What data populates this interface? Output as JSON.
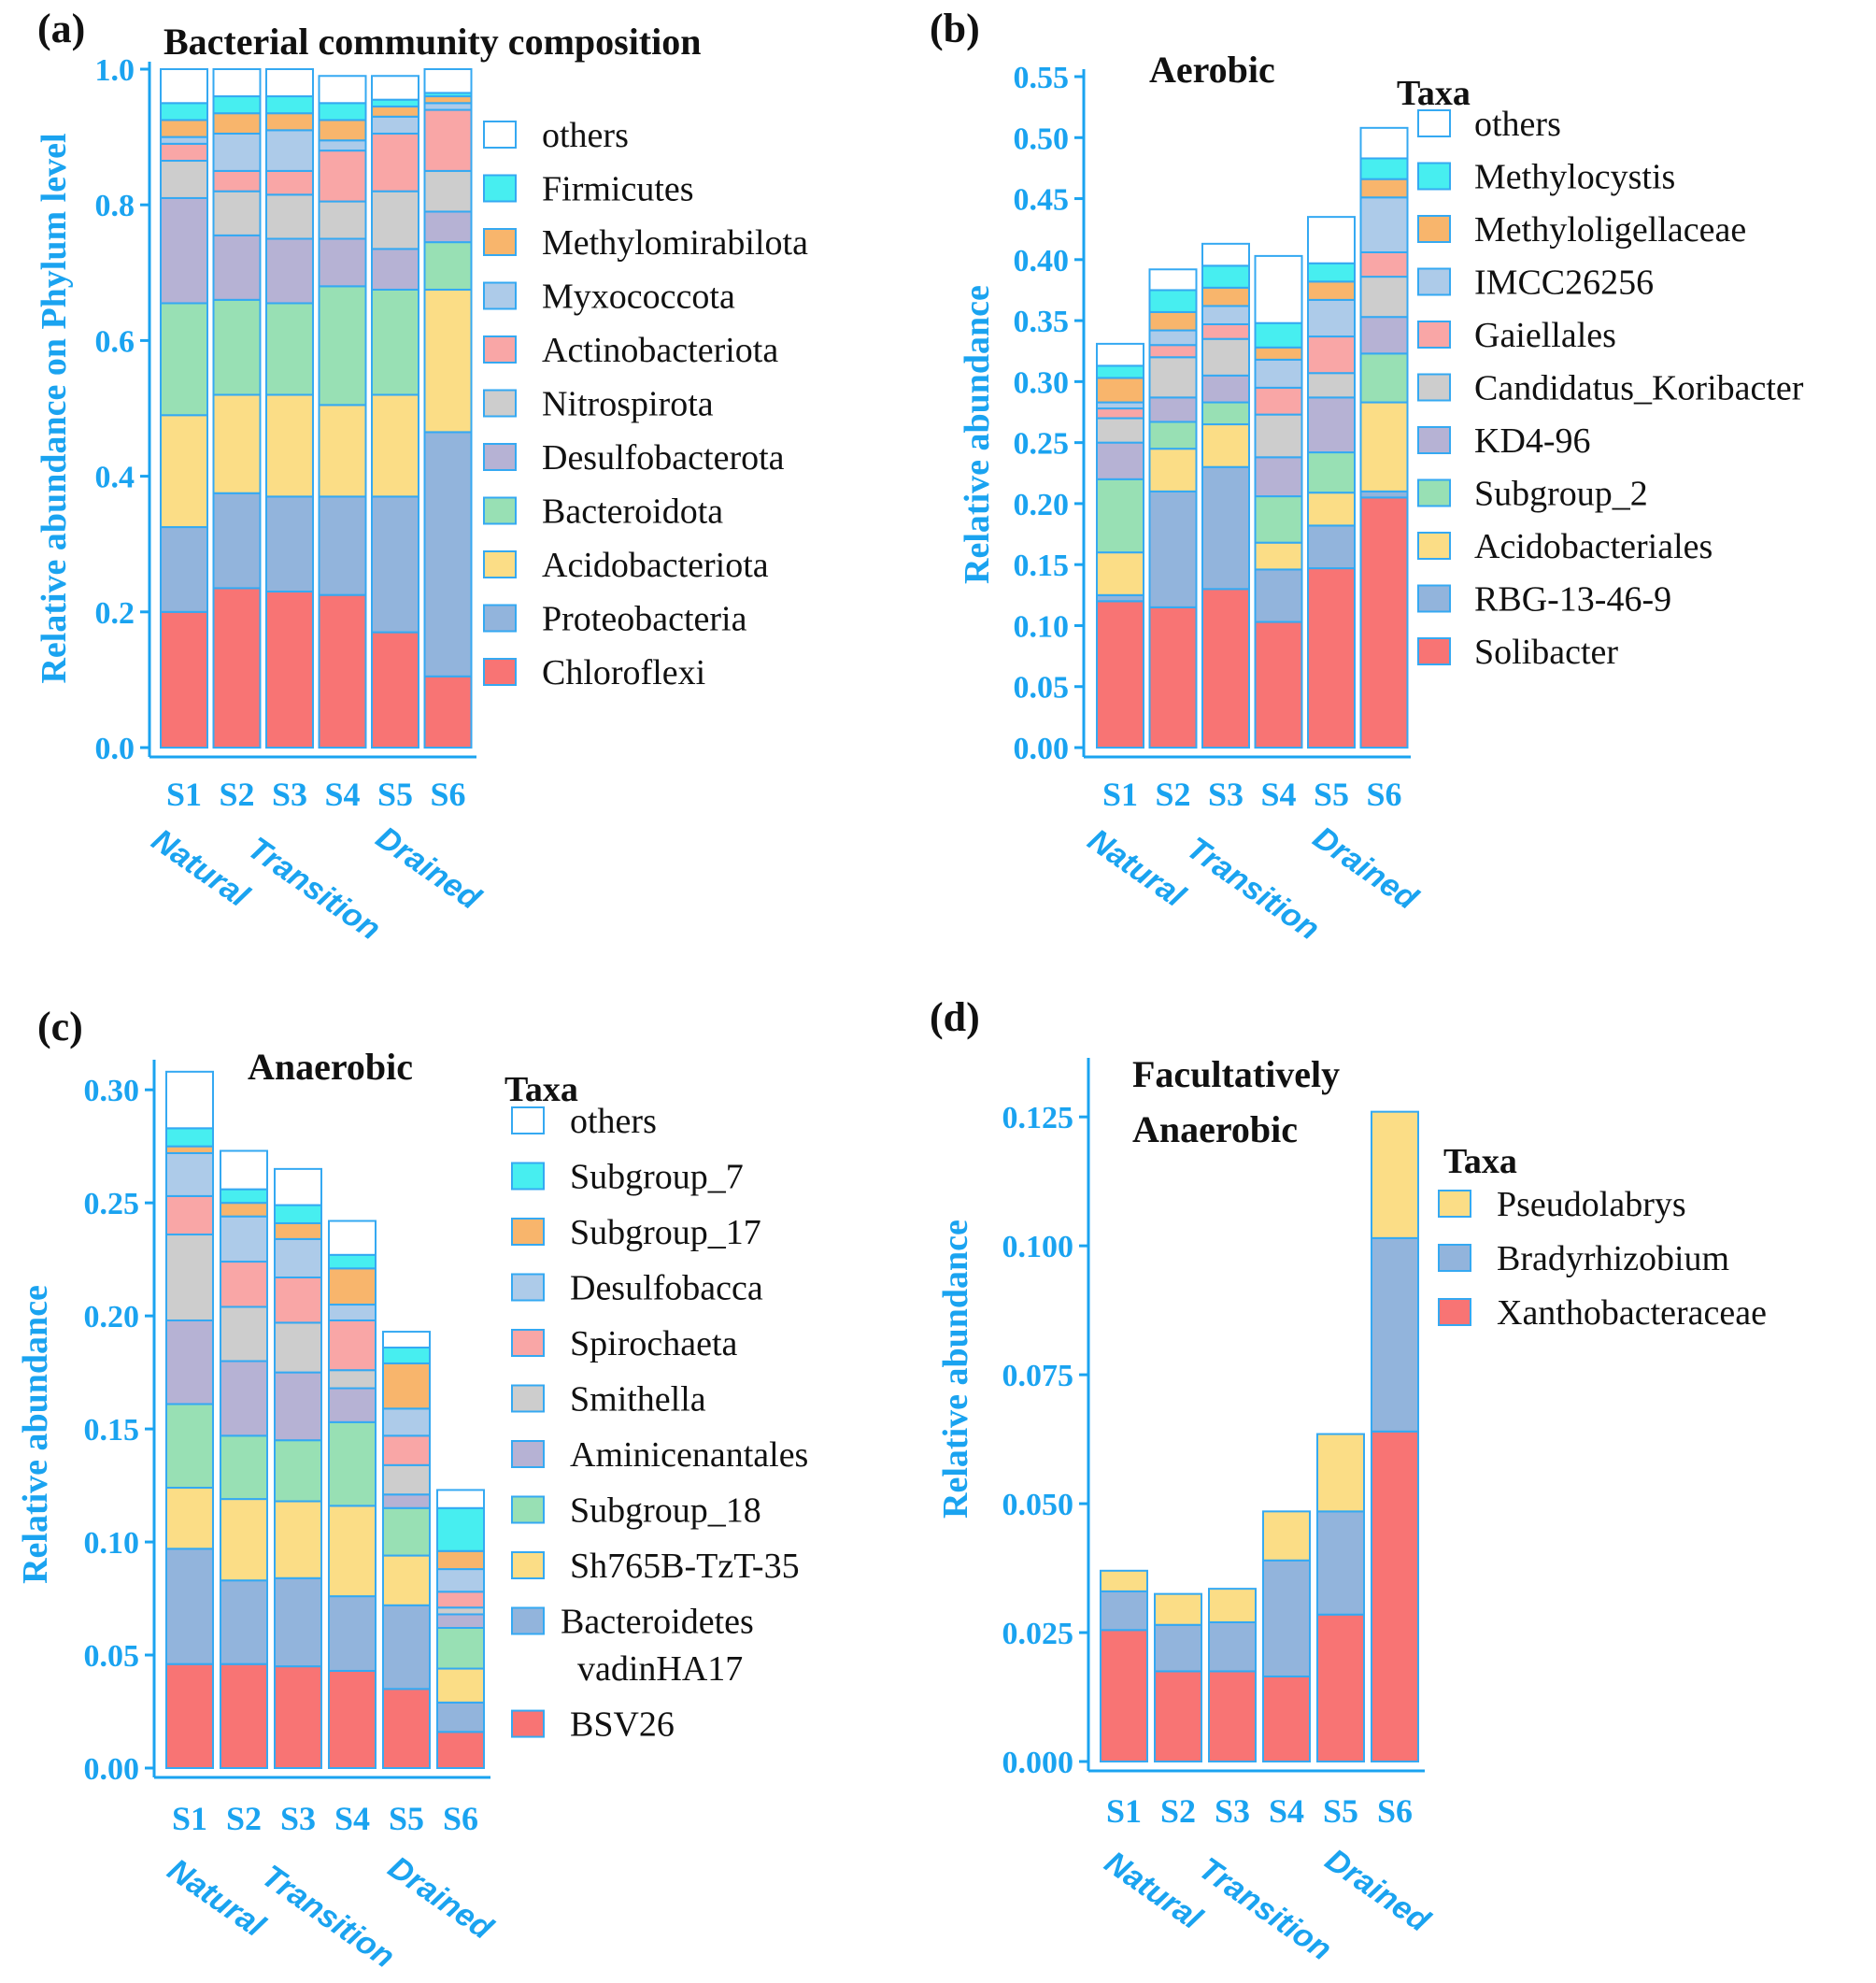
{
  "chart_data": [
    {
      "panel": "(a)",
      "type": "bar",
      "stacked": true,
      "title": "Bacterial  community composition",
      "ylabel": "Relative abundance on Phylum level",
      "xlabel": "",
      "ylim": [
        0,
        1.0
      ],
      "yticks": [
        0.0,
        0.2,
        0.4,
        0.6,
        0.8,
        1.0
      ],
      "ytick_labels": [
        "0.0",
        "0.2",
        "0.4",
        "0.6",
        "0.8",
        "1.0"
      ],
      "categories": [
        "S1",
        "S2",
        "S3",
        "S4",
        "S5",
        "S6"
      ],
      "groups": [
        "Natural",
        "Transition",
        "Drained"
      ],
      "legend_title": "",
      "series": [
        {
          "name": "Chloroflexi",
          "color": "#f87474",
          "values": [
            0.2,
            0.235,
            0.23,
            0.225,
            0.17,
            0.105
          ]
        },
        {
          "name": "Proteobacteria",
          "color": "#92b4dc",
          "values": [
            0.125,
            0.14,
            0.14,
            0.145,
            0.2,
            0.36
          ]
        },
        {
          "name": "Acidobacteriota",
          "color": "#fbdd86",
          "values": [
            0.165,
            0.145,
            0.15,
            0.135,
            0.15,
            0.21
          ]
        },
        {
          "name": "Bacteroidota",
          "color": "#98e0b4",
          "values": [
            0.165,
            0.14,
            0.135,
            0.175,
            0.155,
            0.07
          ]
        },
        {
          "name": "Desulfobacterota",
          "color": "#b6b2d4",
          "values": [
            0.155,
            0.095,
            0.095,
            0.07,
            0.06,
            0.045
          ]
        },
        {
          "name": "Nitrospirota",
          "color": "#cdcdcd",
          "values": [
            0.055,
            0.065,
            0.065,
            0.055,
            0.085,
            0.06
          ]
        },
        {
          "name": "Actinobacteriota",
          "color": "#f9a6a6",
          "values": [
            0.025,
            0.03,
            0.035,
            0.075,
            0.085,
            0.09
          ]
        },
        {
          "name": "Myxococcota",
          "color": "#adcbe9",
          "values": [
            0.01,
            0.055,
            0.06,
            0.015,
            0.025,
            0.01
          ]
        },
        {
          "name": "Methylomirabilota",
          "color": "#f8b56c",
          "values": [
            0.025,
            0.03,
            0.025,
            0.03,
            0.015,
            0.01
          ]
        },
        {
          "name": "Firmicutes",
          "color": "#47eef0",
          "values": [
            0.025,
            0.025,
            0.025,
            0.025,
            0.01,
            0.005
          ]
        },
        {
          "name": "others",
          "color": "#ffffff",
          "values": [
            0.05,
            0.04,
            0.04,
            0.04,
            0.035,
            0.035
          ]
        }
      ]
    },
    {
      "panel": "(b)",
      "type": "bar",
      "stacked": true,
      "title": "Aerobic",
      "ylabel": "Relative abundance",
      "xlabel": "",
      "ylim": [
        0,
        0.55
      ],
      "yticks": [
        0,
        0.05,
        0.1,
        0.15,
        0.2,
        0.25,
        0.3,
        0.35,
        0.4,
        0.45,
        0.5,
        0.55
      ],
      "ytick_labels": [
        "0.00",
        "0.05",
        "0.10",
        "0.15",
        "0.20",
        "0.25",
        "0.30",
        "0.35",
        "0.40",
        "0.45",
        "0.50",
        "0.55"
      ],
      "categories": [
        "S1",
        "S2",
        "S3",
        "S4",
        "S5",
        "S6"
      ],
      "groups": [
        "Natural",
        "Transition",
        "Drained"
      ],
      "legend_title": "Taxa",
      "series": [
        {
          "name": "Solibacter",
          "color": "#f87474",
          "values": [
            0.12,
            0.115,
            0.13,
            0.103,
            0.147,
            0.205
          ]
        },
        {
          "name": "RBG-13-46-9",
          "color": "#92b4dc",
          "values": [
            0.005,
            0.095,
            0.1,
            0.043,
            0.035,
            0.005
          ]
        },
        {
          "name": "Acidobacteriales",
          "color": "#fbdd86",
          "values": [
            0.035,
            0.035,
            0.035,
            0.022,
            0.027,
            0.073
          ]
        },
        {
          "name": "Subgroup_2",
          "color": "#98e0b4",
          "values": [
            0.06,
            0.022,
            0.018,
            0.038,
            0.033,
            0.04
          ]
        },
        {
          "name": "KD4-96",
          "color": "#b6b2d4",
          "values": [
            0.03,
            0.02,
            0.022,
            0.032,
            0.045,
            0.03
          ]
        },
        {
          "name": "Candidatus_Koribacter",
          "color": "#cdcdcd",
          "values": [
            0.02,
            0.033,
            0.03,
            0.035,
            0.02,
            0.033
          ]
        },
        {
          "name": "Gaiellales",
          "color": "#f9a6a6",
          "values": [
            0.008,
            0.01,
            0.012,
            0.022,
            0.03,
            0.02
          ]
        },
        {
          "name": "IMCC26256",
          "color": "#adcbe9",
          "values": [
            0.005,
            0.012,
            0.015,
            0.023,
            0.03,
            0.045
          ]
        },
        {
          "name": "Methyloligellaceae",
          "color": "#f8b56c",
          "values": [
            0.02,
            0.015,
            0.015,
            0.01,
            0.015,
            0.015
          ]
        },
        {
          "name": "Methylocystis",
          "color": "#47eef0",
          "values": [
            0.01,
            0.018,
            0.018,
            0.02,
            0.015,
            0.017
          ]
        },
        {
          "name": "others",
          "color": "#ffffff",
          "values": [
            0.018,
            0.017,
            0.018,
            0.055,
            0.038,
            0.025
          ]
        }
      ]
    },
    {
      "panel": "(c)",
      "type": "bar",
      "stacked": true,
      "title": "Anaerobic",
      "ylabel": "Relative abundance",
      "xlabel": "",
      "ylim": [
        0,
        0.31
      ],
      "yticks": [
        0,
        0.05,
        0.1,
        0.15,
        0.2,
        0.25,
        0.3
      ],
      "ytick_labels": [
        "0.00",
        "0.05",
        "0.10",
        "0.15",
        "0.20",
        "0.25",
        "0.30"
      ],
      "categories": [
        "S1",
        "S2",
        "S3",
        "S4",
        "S5",
        "S6"
      ],
      "groups": [
        "Natural",
        "Transition",
        "Drained"
      ],
      "legend_title": "Taxa",
      "series": [
        {
          "name": "BSV26",
          "color": "#f87474",
          "values": [
            0.046,
            0.046,
            0.045,
            0.043,
            0.035,
            0.016
          ]
        },
        {
          "name": "Bacteroidetes vadinHA17",
          "legend_lines": [
            "Bacteroidetes",
            "vadinHA17"
          ],
          "color": "#92b4dc",
          "values": [
            0.051,
            0.037,
            0.039,
            0.033,
            0.037,
            0.013
          ]
        },
        {
          "name": "Sh765B-TzT-35",
          "color": "#fbdd86",
          "values": [
            0.027,
            0.036,
            0.034,
            0.04,
            0.022,
            0.015
          ]
        },
        {
          "name": "Subgroup_18",
          "color": "#98e0b4",
          "values": [
            0.037,
            0.028,
            0.027,
            0.037,
            0.021,
            0.018
          ]
        },
        {
          "name": "Aminicenantales",
          "color": "#b6b2d4",
          "values": [
            0.037,
            0.033,
            0.03,
            0.015,
            0.006,
            0.006
          ]
        },
        {
          "name": "Smithella",
          "color": "#cdcdcd",
          "values": [
            0.038,
            0.024,
            0.022,
            0.008,
            0.013,
            0.003
          ]
        },
        {
          "name": "Spirochaeta",
          "color": "#f9a6a6",
          "values": [
            0.017,
            0.02,
            0.02,
            0.022,
            0.013,
            0.007
          ]
        },
        {
          "name": "Desulfobacca",
          "color": "#adcbe9",
          "values": [
            0.019,
            0.02,
            0.017,
            0.007,
            0.012,
            0.01
          ]
        },
        {
          "name": "Subgroup_17",
          "color": "#f8b56c",
          "values": [
            0.003,
            0.006,
            0.007,
            0.016,
            0.02,
            0.008
          ]
        },
        {
          "name": "Subgroup_7",
          "color": "#47eef0",
          "values": [
            0.008,
            0.006,
            0.008,
            0.006,
            0.007,
            0.019
          ]
        },
        {
          "name": "others",
          "color": "#ffffff",
          "values": [
            0.025,
            0.017,
            0.016,
            0.015,
            0.007,
            0.008
          ]
        }
      ]
    },
    {
      "panel": "(d)",
      "type": "bar",
      "stacked": true,
      "title": "Facultatively Anaerobic",
      "title_lines": [
        "Facultatively",
        "Anaerobic"
      ],
      "ylabel": "Relative abundance",
      "xlabel": "",
      "ylim": [
        0,
        0.135
      ],
      "yticks": [
        0,
        0.025,
        0.05,
        0.075,
        0.1,
        0.125
      ],
      "ytick_labels": [
        "0.000",
        "0.025",
        "0.050",
        "0.075",
        "0.100",
        "0.125"
      ],
      "categories": [
        "S1",
        "S2",
        "S3",
        "S4",
        "S5",
        "S6"
      ],
      "groups": [
        "Natural",
        "Transition",
        "Drained"
      ],
      "legend_title": "Taxa",
      "series": [
        {
          "name": "Xanthobacteraceae",
          "color": "#f87474",
          "values": [
            0.0255,
            0.0175,
            0.0175,
            0.0165,
            0.0285,
            0.064
          ]
        },
        {
          "name": "Bradyrhizobium",
          "color": "#92b4dc",
          "values": [
            0.0075,
            0.009,
            0.0095,
            0.0225,
            0.02,
            0.0375
          ]
        },
        {
          "name": "Pseudolabrys",
          "color": "#fbdd86",
          "values": [
            0.004,
            0.006,
            0.0065,
            0.0095,
            0.015,
            0.0245
          ]
        }
      ]
    }
  ]
}
